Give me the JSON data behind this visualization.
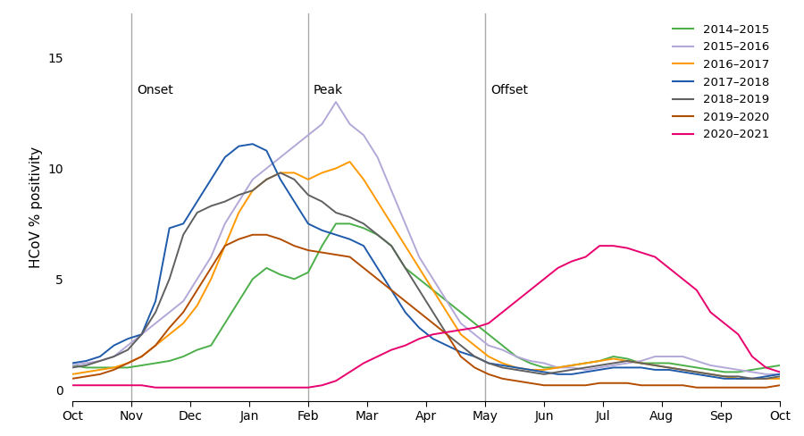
{
  "title": "",
  "ylabel": "HCoV % positivity",
  "xlabel": "",
  "xlim": [
    0,
    52
  ],
  "ylim": [
    -0.5,
    17
  ],
  "yticks": [
    0,
    5,
    10,
    15
  ],
  "xtick_labels": [
    "Oct",
    "Nov",
    "Dec",
    "Jan",
    "Feb",
    "Mar",
    "Apr",
    "May",
    "Jun",
    "Jul",
    "Aug",
    "Sep",
    "Oct"
  ],
  "xtick_positions": [
    0,
    4.33,
    8.67,
    13,
    17.33,
    21.67,
    26,
    30.33,
    34.67,
    39,
    43.33,
    47.67,
    52
  ],
  "vlines": [
    4.33,
    17.33,
    30.33
  ],
  "vline_labels": [
    "Onset",
    "Peak",
    "Offset"
  ],
  "background_color": "#ffffff",
  "seasons": {
    "2014-2015": {
      "color": "#4daf4a",
      "label": "2014–2015",
      "y": [
        1.1,
        1.0,
        1.0,
        1.0,
        1.0,
        1.1,
        1.2,
        1.3,
        1.5,
        1.8,
        2.0,
        3.0,
        4.0,
        5.0,
        5.5,
        5.2,
        5.0,
        5.3,
        6.5,
        7.5,
        7.5,
        7.3,
        7.0,
        6.5,
        5.5,
        5.0,
        4.5,
        4.0,
        3.5,
        3.0,
        2.5,
        2.0,
        1.5,
        1.2,
        1.0,
        1.0,
        1.1,
        1.2,
        1.3,
        1.5,
        1.4,
        1.2,
        1.2,
        1.2,
        1.1,
        1.0,
        0.9,
        0.8,
        0.8,
        0.9,
        1.0,
        1.1
      ]
    },
    "2015-2016": {
      "color": "#b3a8d8",
      "label": "2015–2016",
      "y": [
        1.1,
        1.2,
        1.3,
        1.5,
        2.0,
        2.5,
        3.0,
        3.5,
        4.0,
        5.0,
        6.0,
        7.5,
        8.5,
        9.5,
        10.0,
        10.5,
        11.0,
        11.5,
        12.0,
        13.0,
        12.0,
        11.5,
        10.5,
        9.0,
        7.5,
        6.0,
        5.0,
        4.0,
        3.0,
        2.5,
        2.0,
        1.8,
        1.5,
        1.3,
        1.2,
        1.0,
        1.0,
        0.9,
        1.0,
        1.1,
        1.2,
        1.3,
        1.5,
        1.5,
        1.5,
        1.3,
        1.1,
        1.0,
        0.9,
        0.8,
        0.7,
        0.7
      ]
    },
    "2016-2017": {
      "color": "#ff9900",
      "label": "2016–2017",
      "y": [
        0.7,
        0.8,
        0.9,
        1.0,
        1.2,
        1.5,
        2.0,
        2.5,
        3.0,
        3.8,
        5.0,
        6.5,
        8.0,
        9.0,
        9.5,
        9.8,
        9.8,
        9.5,
        9.8,
        10.0,
        10.3,
        9.5,
        8.5,
        7.5,
        6.5,
        5.5,
        4.5,
        3.5,
        2.5,
        2.0,
        1.5,
        1.2,
        1.0,
        0.9,
        0.9,
        1.0,
        1.1,
        1.2,
        1.3,
        1.4,
        1.3,
        1.2,
        1.1,
        1.0,
        0.9,
        0.8,
        0.7,
        0.6,
        0.5,
        0.5,
        0.5,
        0.5
      ]
    },
    "2017-2018": {
      "color": "#1f5bab",
      "label": "2017–2018",
      "y": [
        1.2,
        1.3,
        1.5,
        2.0,
        2.3,
        2.5,
        4.0,
        7.3,
        7.5,
        8.5,
        9.5,
        10.5,
        11.0,
        11.1,
        10.8,
        9.5,
        8.5,
        7.5,
        7.2,
        7.0,
        6.8,
        6.5,
        5.5,
        4.5,
        3.5,
        2.8,
        2.3,
        2.0,
        1.7,
        1.5,
        1.2,
        1.1,
        1.0,
        0.9,
        0.8,
        0.7,
        0.7,
        0.8,
        0.9,
        1.0,
        1.0,
        1.0,
        0.9,
        0.9,
        0.8,
        0.7,
        0.6,
        0.5,
        0.5,
        0.5,
        0.6,
        0.7
      ]
    },
    "2018-2019": {
      "color": "#606060",
      "label": "2018–2019",
      "y": [
        1.0,
        1.1,
        1.3,
        1.5,
        1.8,
        2.5,
        3.5,
        5.0,
        7.0,
        8.0,
        8.3,
        8.5,
        8.8,
        9.0,
        9.5,
        9.8,
        9.5,
        8.8,
        8.5,
        8.0,
        7.8,
        7.5,
        7.0,
        6.5,
        5.5,
        4.5,
        3.5,
        2.5,
        2.0,
        1.5,
        1.2,
        1.0,
        0.9,
        0.8,
        0.7,
        0.8,
        0.9,
        1.0,
        1.1,
        1.2,
        1.3,
        1.2,
        1.1,
        1.0,
        0.9,
        0.8,
        0.7,
        0.6,
        0.6,
        0.5,
        0.5,
        0.6
      ]
    },
    "2019-2020": {
      "color": "#b34d00",
      "label": "2019–2020",
      "y": [
        0.5,
        0.6,
        0.7,
        0.9,
        1.2,
        1.5,
        2.0,
        2.8,
        3.5,
        4.5,
        5.5,
        6.5,
        6.8,
        7.0,
        7.0,
        6.8,
        6.5,
        6.3,
        6.2,
        6.1,
        6.0,
        5.5,
        5.0,
        4.5,
        4.0,
        3.5,
        3.0,
        2.5,
        1.5,
        1.0,
        0.7,
        0.5,
        0.4,
        0.3,
        0.2,
        0.2,
        0.2,
        0.2,
        0.3,
        0.3,
        0.3,
        0.2,
        0.2,
        0.2,
        0.2,
        0.1,
        0.1,
        0.1,
        0.1,
        0.1,
        0.1,
        0.2
      ]
    },
    "2020-2021": {
      "color": "#e8006e",
      "label": "2020–2021",
      "y": [
        0.2,
        0.2,
        0.2,
        0.2,
        0.2,
        0.2,
        0.1,
        0.1,
        0.1,
        0.1,
        0.1,
        0.1,
        0.1,
        0.1,
        0.1,
        0.1,
        0.1,
        0.1,
        0.2,
        0.4,
        0.8,
        1.2,
        1.5,
        1.8,
        2.0,
        2.3,
        2.5,
        2.6,
        2.7,
        2.8,
        3.0,
        3.5,
        4.0,
        4.5,
        5.0,
        5.5,
        5.8,
        6.0,
        6.5,
        6.5,
        6.4,
        6.2,
        6.0,
        5.5,
        5.0,
        4.5,
        3.5,
        3.0,
        2.5,
        1.5,
        1.0,
        0.8
      ]
    }
  }
}
